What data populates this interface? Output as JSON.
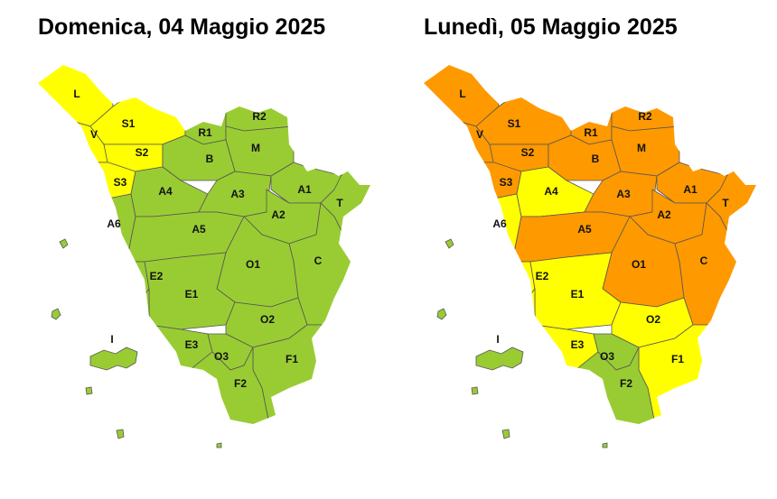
{
  "maps": [
    {
      "title": "Domenica, 04 Maggio 2025",
      "zones": [
        {
          "label": "L",
          "color": "#ffff00"
        },
        {
          "label": "V",
          "color": "#ffff00"
        },
        {
          "label": "S1",
          "color": "#ffff00"
        },
        {
          "label": "S2",
          "color": "#ffff00"
        },
        {
          "label": "R1",
          "color": "#99cc33"
        },
        {
          "label": "R2",
          "color": "#99cc33"
        },
        {
          "label": "M",
          "color": "#99cc33"
        },
        {
          "label": "B",
          "color": "#99cc33"
        },
        {
          "label": "S3",
          "color": "#ffff00"
        },
        {
          "label": "A6",
          "color": "#99cc33"
        },
        {
          "label": "A4",
          "color": "#99cc33"
        },
        {
          "label": "A3",
          "color": "#99cc33"
        },
        {
          "label": "A5",
          "color": "#99cc33"
        },
        {
          "label": "A1",
          "color": "#99cc33"
        },
        {
          "label": "T",
          "color": "#99cc33"
        },
        {
          "label": "A2",
          "color": "#99cc33"
        },
        {
          "label": "C",
          "color": "#99cc33"
        },
        {
          "label": "O1",
          "color": "#99cc33"
        },
        {
          "label": "E2",
          "color": "#99cc33"
        },
        {
          "label": "E1",
          "color": "#99cc33"
        },
        {
          "label": "O2",
          "color": "#99cc33"
        },
        {
          "label": "E3",
          "color": "#99cc33"
        },
        {
          "label": "O3",
          "color": "#99cc33"
        },
        {
          "label": "F1",
          "color": "#99cc33"
        },
        {
          "label": "F2",
          "color": "#99cc33"
        },
        {
          "label": "I",
          "color": "#99cc33"
        }
      ]
    },
    {
      "title": "Lunedì, 05 Maggio 2025",
      "zones": [
        {
          "label": "L",
          "color": "#ff9900"
        },
        {
          "label": "V",
          "color": "#ff9900"
        },
        {
          "label": "S1",
          "color": "#ff9900"
        },
        {
          "label": "S2",
          "color": "#ff9900"
        },
        {
          "label": "R1",
          "color": "#ff9900"
        },
        {
          "label": "R2",
          "color": "#ff9900"
        },
        {
          "label": "M",
          "color": "#ff9900"
        },
        {
          "label": "B",
          "color": "#ff9900"
        },
        {
          "label": "S3",
          "color": "#ff9900"
        },
        {
          "label": "A6",
          "color": "#ffff00"
        },
        {
          "label": "A4",
          "color": "#ffff00"
        },
        {
          "label": "A3",
          "color": "#ff9900"
        },
        {
          "label": "A5",
          "color": "#ff9900"
        },
        {
          "label": "A1",
          "color": "#ff9900"
        },
        {
          "label": "T",
          "color": "#ff9900"
        },
        {
          "label": "A2",
          "color": "#ff9900"
        },
        {
          "label": "C",
          "color": "#ff9900"
        },
        {
          "label": "O1",
          "color": "#ff9900"
        },
        {
          "label": "E2",
          "color": "#ffff00"
        },
        {
          "label": "E1",
          "color": "#ffff00"
        },
        {
          "label": "O2",
          "color": "#ffff00"
        },
        {
          "label": "E3",
          "color": "#ffff00"
        },
        {
          "label": "O3",
          "color": "#99cc33"
        },
        {
          "label": "F1",
          "color": "#ffff00"
        },
        {
          "label": "F2",
          "color": "#99cc33"
        },
        {
          "label": "I",
          "color": "#99cc33"
        }
      ]
    }
  ]
}
